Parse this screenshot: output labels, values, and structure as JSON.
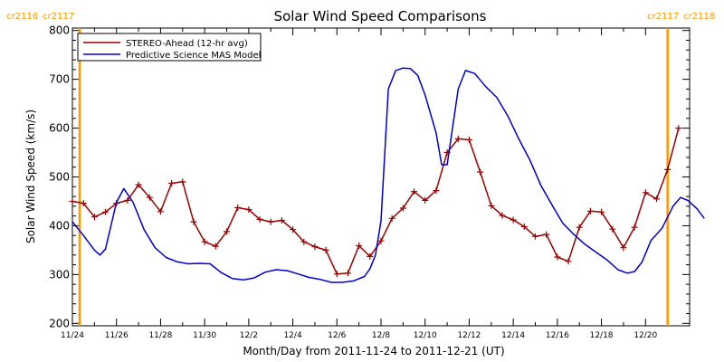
{
  "chart_data": {
    "type": "line",
    "title": "Solar Wind Speed Comparisons",
    "xlabel": "Month/Day from 2011-11-24 to 2011-12-21 (UT)",
    "ylabel": "Solar Wind Speed (km/s)",
    "ylim": [
      195,
      805
    ],
    "xlim": [
      "2011-11-24",
      "2011-12-22"
    ],
    "yticks": [
      "200",
      "300",
      "400",
      "500",
      "600",
      "700",
      "800"
    ],
    "xticks": [
      "11/24",
      "11/26",
      "11/28",
      "11/30",
      "12/2",
      "12/4",
      "12/6",
      "12/8",
      "12/10",
      "12/12",
      "12/14",
      "12/16",
      "12/18",
      "12/20"
    ],
    "grid": false,
    "legend_position": "top-left",
    "carrington_labels": {
      "left": [
        "cr2116",
        "cr2117"
      ],
      "right": [
        "cr2117",
        "cr2118"
      ],
      "left_marker": "2011-11-24",
      "right_marker": "2011-12-21"
    },
    "series": [
      {
        "name": "STEREO-Ahead (12-hr avg)",
        "color": "#990000",
        "marker": "plus",
        "points": [
          [
            "2011-11-24 00:00",
            450
          ],
          [
            "2011-11-24 12:00",
            446
          ],
          [
            "2011-11-25 00:00",
            418
          ],
          [
            "2011-11-25 12:00",
            428
          ],
          [
            "2011-11-26 00:00",
            446
          ],
          [
            "2011-11-26 12:00",
            452
          ],
          [
            "2011-11-27 00:00",
            484
          ],
          [
            "2011-11-27 12:00",
            458
          ],
          [
            "2011-11-28 00:00",
            429
          ],
          [
            "2011-11-28 12:00",
            487
          ],
          [
            "2011-11-29 00:00",
            490
          ],
          [
            "2011-11-29 12:00",
            408
          ],
          [
            "2011-11-30 00:00",
            367
          ],
          [
            "2011-11-30 12:00",
            358
          ],
          [
            "2011-12-01 00:00",
            388
          ],
          [
            "2011-12-01 12:00",
            437
          ],
          [
            "2011-12-02 00:00",
            433
          ],
          [
            "2011-12-02 12:00",
            413
          ],
          [
            "2011-12-03 00:00",
            408
          ],
          [
            "2011-12-03 12:00",
            411
          ],
          [
            "2011-12-04 00:00",
            392
          ],
          [
            "2011-12-04 12:00",
            367
          ],
          [
            "2011-12-05 00:00",
            357
          ],
          [
            "2011-12-05 12:00",
            350
          ],
          [
            "2011-12-06 00:00",
            301
          ],
          [
            "2011-12-06 12:00",
            303
          ],
          [
            "2011-12-07 00:00",
            359
          ],
          [
            "2011-12-07 12:00",
            337
          ],
          [
            "2011-12-08 00:00",
            369
          ],
          [
            "2011-12-08 12:00",
            415
          ],
          [
            "2011-12-09 00:00",
            436
          ],
          [
            "2011-12-09 12:00",
            470
          ],
          [
            "2011-12-10 00:00",
            452
          ],
          [
            "2011-12-10 12:00",
            472
          ],
          [
            "2011-12-11 00:00",
            550
          ],
          [
            "2011-12-11 12:00",
            578
          ],
          [
            "2011-12-12 00:00",
            576
          ],
          [
            "2011-12-12 12:00",
            510
          ],
          [
            "2011-12-13 00:00",
            441
          ],
          [
            "2011-12-13 12:00",
            421
          ],
          [
            "2011-12-14 00:00",
            412
          ],
          [
            "2011-12-14 12:00",
            398
          ],
          [
            "2011-12-15 00:00",
            378
          ],
          [
            "2011-12-15 12:00",
            382
          ],
          [
            "2011-12-16 00:00",
            336
          ],
          [
            "2011-12-16 12:00",
            327
          ],
          [
            "2011-12-17 00:00",
            397
          ],
          [
            "2011-12-17 12:00",
            430
          ],
          [
            "2011-12-18 00:00",
            428
          ],
          [
            "2011-12-18 12:00",
            393
          ],
          [
            "2011-12-19 00:00",
            355
          ],
          [
            "2011-12-19 12:00",
            397
          ],
          [
            "2011-12-20 00:00",
            468
          ],
          [
            "2011-12-20 12:00",
            455
          ],
          [
            "2011-12-21 00:00",
            515
          ],
          [
            "2011-12-21 12:00",
            600
          ]
        ]
      },
      {
        "name": "Predictive Science MAS Model",
        "color": "#0000cc",
        "marker": "none",
        "points": [
          [
            "2011-11-24 00:00",
            408
          ],
          [
            "2011-11-24 12:00",
            380
          ],
          [
            "2011-11-25 00:00",
            350
          ],
          [
            "2011-11-25 06:00",
            340
          ],
          [
            "2011-11-25 12:00",
            352
          ],
          [
            "2011-11-26 00:00",
            448
          ],
          [
            "2011-11-26 08:00",
            476
          ],
          [
            "2011-11-26 18:00",
            448
          ],
          [
            "2011-11-27 06:00",
            392
          ],
          [
            "2011-11-27 18:00",
            355
          ],
          [
            "2011-11-28 06:00",
            335
          ],
          [
            "2011-11-28 18:00",
            326
          ],
          [
            "2011-11-29 06:00",
            322
          ],
          [
            "2011-11-29 18:00",
            323
          ],
          [
            "2011-11-30 06:00",
            322
          ],
          [
            "2011-11-30 18:00",
            304
          ],
          [
            "2011-12-01 06:00",
            292
          ],
          [
            "2011-12-01 18:00",
            289
          ],
          [
            "2011-12-02 06:00",
            293
          ],
          [
            "2011-12-02 18:00",
            305
          ],
          [
            "2011-12-03 06:00",
            310
          ],
          [
            "2011-12-03 18:00",
            308
          ],
          [
            "2011-12-04 06:00",
            301
          ],
          [
            "2011-12-04 18:00",
            294
          ],
          [
            "2011-12-05 06:00",
            290
          ],
          [
            "2011-12-05 18:00",
            284
          ],
          [
            "2011-12-06 06:00",
            284
          ],
          [
            "2011-12-06 18:00",
            287
          ],
          [
            "2011-12-07 06:00",
            296
          ],
          [
            "2011-12-07 12:00",
            312
          ],
          [
            "2011-12-07 18:00",
            340
          ],
          [
            "2011-12-08 00:00",
            410
          ],
          [
            "2011-12-08 08:00",
            680
          ],
          [
            "2011-12-08 16:00",
            718
          ],
          [
            "2011-12-09 00:00",
            723
          ],
          [
            "2011-12-09 08:00",
            722
          ],
          [
            "2011-12-09 16:00",
            708
          ],
          [
            "2011-12-10 00:00",
            668
          ],
          [
            "2011-12-10 12:00",
            590
          ],
          [
            "2011-12-10 18:00",
            525
          ],
          [
            "2011-12-11 00:00",
            525
          ],
          [
            "2011-12-11 12:00",
            680
          ],
          [
            "2011-12-11 20:00",
            718
          ],
          [
            "2011-12-12 06:00",
            712
          ],
          [
            "2011-12-12 18:00",
            685
          ],
          [
            "2011-12-13 06:00",
            663
          ],
          [
            "2011-12-13 18:00",
            625
          ],
          [
            "2011-12-14 06:00",
            578
          ],
          [
            "2011-12-14 18:00",
            535
          ],
          [
            "2011-12-15 06:00",
            483
          ],
          [
            "2011-12-15 18:00",
            443
          ],
          [
            "2011-12-16 06:00",
            405
          ],
          [
            "2011-12-16 18:00",
            382
          ],
          [
            "2011-12-17 06:00",
            362
          ],
          [
            "2011-12-17 18:00",
            346
          ],
          [
            "2011-12-18 06:00",
            330
          ],
          [
            "2011-12-18 18:00",
            310
          ],
          [
            "2011-12-19 04:00",
            303
          ],
          [
            "2011-12-19 12:00",
            306
          ],
          [
            "2011-12-19 20:00",
            325
          ],
          [
            "2011-12-20 06:00",
            370
          ],
          [
            "2011-12-20 18:00",
            395
          ],
          [
            "2011-12-21 06:00",
            440
          ],
          [
            "2011-12-21 14:00",
            458
          ],
          [
            "2011-12-21 22:00",
            452
          ],
          [
            "2011-12-22 08:00",
            435
          ],
          [
            "2011-12-22 16:00",
            415
          ]
        ]
      }
    ]
  }
}
